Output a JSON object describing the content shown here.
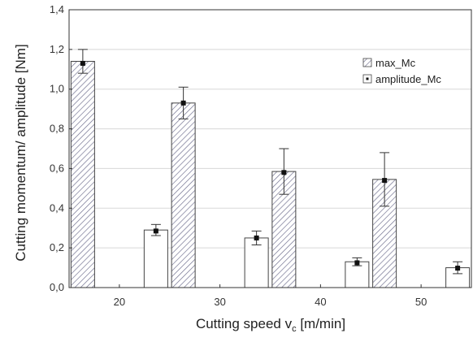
{
  "chart_data": {
    "type": "bar",
    "categories": [
      "20",
      "30",
      "40",
      "50"
    ],
    "series": [
      {
        "name": "max_Mc",
        "values": [
          1.14,
          0.93,
          0.585,
          0.545
        ],
        "errors": [
          0.06,
          0.08,
          0.115,
          0.135
        ]
      },
      {
        "name": "amplitude_Mc",
        "values": [
          0.29,
          0.25,
          0.13,
          0.1
        ],
        "errors": [
          0.028,
          0.035,
          0.02,
          0.03
        ]
      }
    ],
    "markers": {
      "max_Mc": [
        1.13,
        0.93,
        0.58,
        0.54
      ],
      "amplitude_Mc": [
        0.285,
        0.25,
        0.125,
        0.098
      ]
    },
    "xlabel": {
      "main": "Cutting speed v",
      "sub": "c",
      "unit": " [m/min]"
    },
    "ylabel": "Cutting momentum/ amplitude [Nm]",
    "ylim": [
      0,
      1.4
    ],
    "yticks": [
      "0,0",
      "0,2",
      "0,4",
      "0,6",
      "0,8",
      "1,0",
      "1,2",
      "1,4"
    ],
    "grid": true,
    "legend_position": "top-right",
    "colors": {
      "hatch": "#6a6a8a",
      "bar_edge": "#444444",
      "grid": "#d8d8d8",
      "marker": "#111111"
    }
  }
}
